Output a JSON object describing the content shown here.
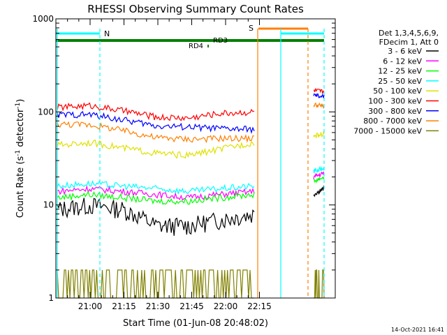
{
  "chart_data": {
    "type": "line",
    "title": "RHESSI Observing Summary Count Rates",
    "xlabel": "Start Time (01-Jun-08 20:48:02)",
    "ylabel_main": "Count Rate (s",
    "ylabel_sup1": "-1",
    "ylabel_mid": " detector",
    "ylabel_sup2": "-1",
    "ylabel_end": ")",
    "yscale": "log",
    "ylim": [
      1,
      1000
    ],
    "x_ticks": [
      "21:00",
      "21:15",
      "21:30",
      "21:45",
      "22:00",
      "22:15"
    ],
    "y_ticks": [
      "1",
      "10",
      "100",
      "1000"
    ],
    "legend_header": [
      "Det 1,3,4,5,6,9,",
      "FDecim 1, Att 0"
    ],
    "footer": "14-Oct-2021 16:41",
    "annotations": [
      {
        "text": "N",
        "color": "#00ffff"
      },
      {
        "text": "S",
        "color": "#ff7f00"
      },
      {
        "text": "RD4",
        "color": "#008000"
      },
      {
        "text": "RD3",
        "color": "#008000"
      }
    ],
    "series": [
      {
        "name": "3 - 6 keV",
        "color": "#000000",
        "values": [
          9,
          10,
          9,
          6,
          6,
          7,
          8,
          13,
          15
        ]
      },
      {
        "name": "6 - 12 keV",
        "color": "#ff00ff",
        "values": [
          14,
          15,
          14,
          13,
          12,
          13,
          14,
          20,
          22
        ]
      },
      {
        "name": "12 - 25 keV",
        "color": "#00ff00",
        "values": [
          12,
          13,
          12,
          11,
          11,
          12,
          13,
          18,
          20
        ]
      },
      {
        "name": "25 - 50 keV",
        "color": "#00ffff",
        "values": [
          16,
          17,
          16,
          15,
          14,
          15,
          16,
          23,
          25
        ]
      },
      {
        "name": "50 - 100 keV",
        "color": "#e0e000",
        "values": [
          44,
          47,
          41,
          36,
          34,
          40,
          47,
          55,
          58
        ]
      },
      {
        "name": "100 - 300 keV",
        "color": "#ff0000",
        "values": [
          112,
          117,
          103,
          88,
          86,
          97,
          100,
          170,
          165
        ]
      },
      {
        "name": "300 - 800 keV",
        "color": "#0000ff",
        "values": [
          93,
          94,
          82,
          71,
          69,
          66,
          65,
          150,
          145
        ]
      },
      {
        "name": "800 - 7000 keV",
        "color": "#ff7f00",
        "values": [
          74,
          73,
          63,
          53,
          51,
          52,
          52,
          120,
          115
        ]
      },
      {
        "name": "7000 - 15000 keV",
        "color": "#808000",
        "values": [
          2,
          1.5,
          2,
          2,
          1.5,
          2,
          2,
          2,
          2
        ]
      }
    ]
  }
}
